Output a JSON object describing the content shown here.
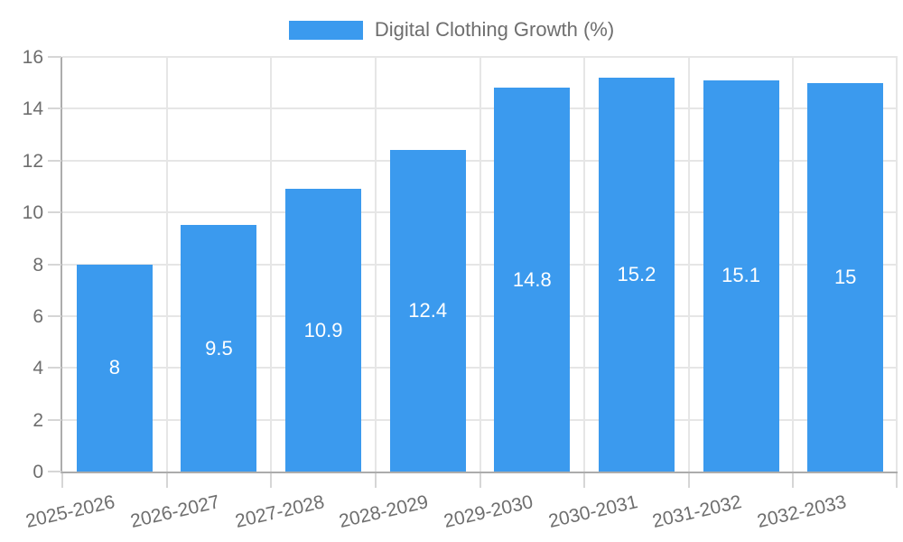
{
  "legend": {
    "label": "Digital Clothing Growth (%)"
  },
  "chart_data": {
    "type": "bar",
    "title": "Digital Clothing Growth (%)",
    "xlabel": "",
    "ylabel": "",
    "categories": [
      "2025-2026",
      "2026-2027",
      "2027-2028",
      "2028-2029",
      "2029-2030",
      "2030-2031",
      "2031-2032",
      "2032-2033"
    ],
    "values": [
      8,
      9.5,
      10.9,
      12.4,
      14.8,
      15.2,
      15.1,
      15
    ],
    "value_labels": [
      "8",
      "9.5",
      "10.9",
      "12.4",
      "14.8",
      "15.2",
      "15.1",
      "15"
    ],
    "ylim": [
      0,
      16
    ],
    "yticks": [
      0,
      2,
      4,
      6,
      8,
      10,
      12,
      14,
      16
    ],
    "grid": true,
    "legend_position": "top",
    "colors": {
      "bar": "#3B9AEE",
      "bar_label": "#FFFFFF",
      "grid": "#E6E6E6",
      "axis": "#ACACAC",
      "tick_mark": "#D6D6D6",
      "text": "#6E6E6E"
    }
  }
}
